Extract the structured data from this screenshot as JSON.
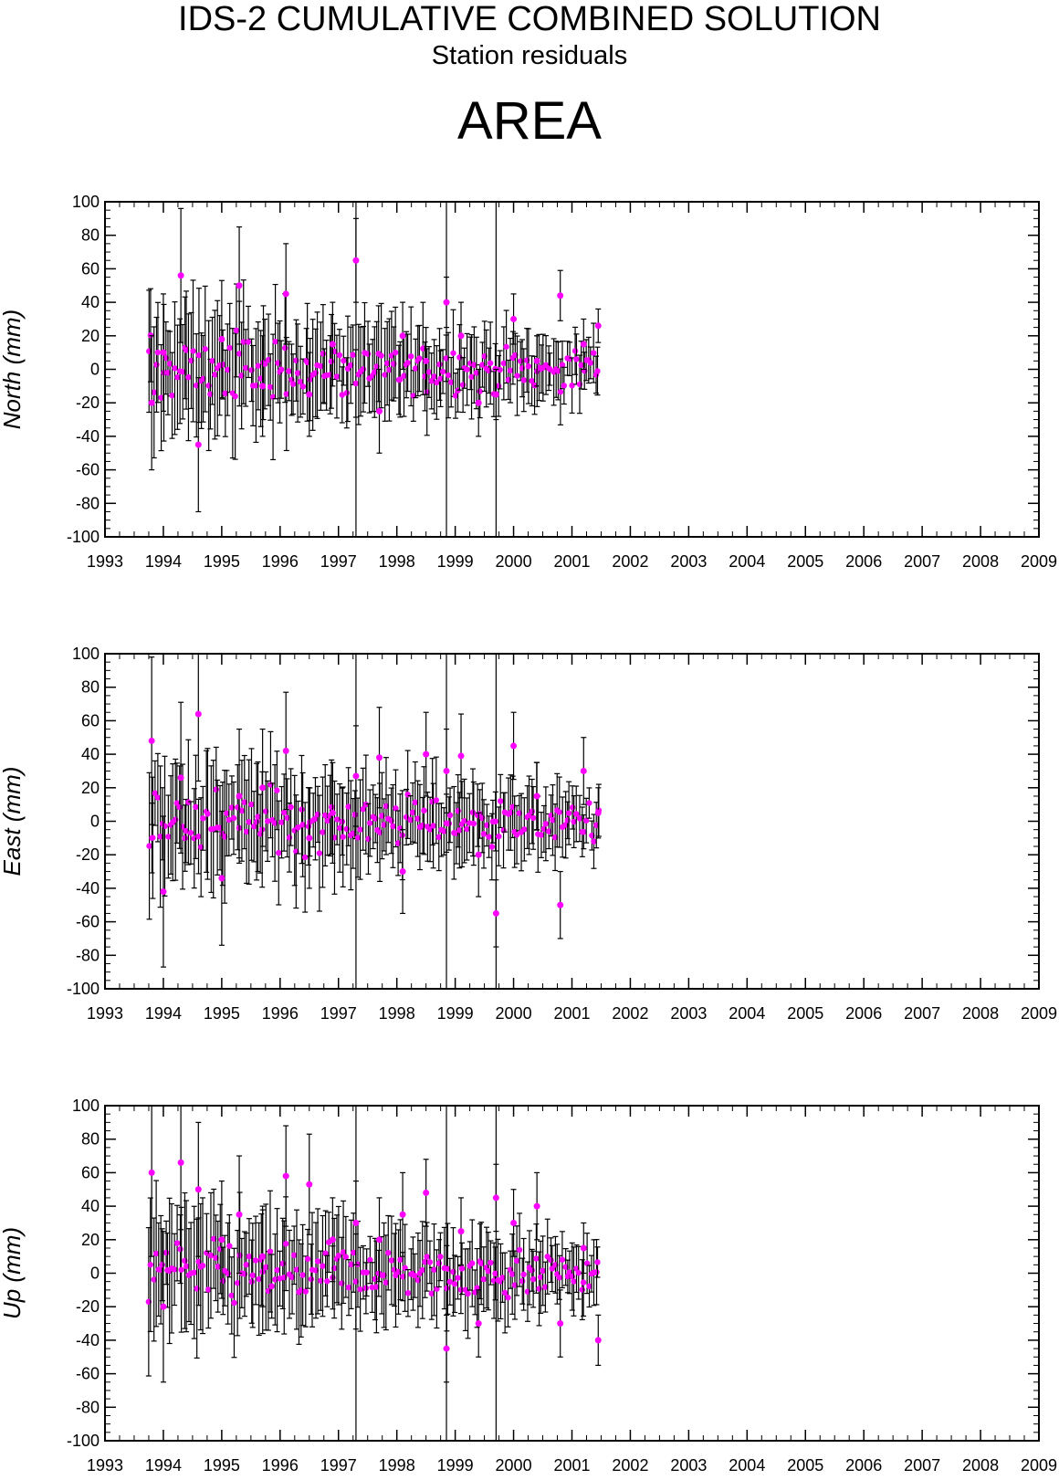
{
  "header": {
    "title": "IDS-2 CUMULATIVE COMBINED SOLUTION",
    "subtitle": "Station residuals",
    "station": "AREA"
  },
  "colors": {
    "point": "#ff00ff",
    "errorbar": "#000000",
    "axis": "#000000"
  },
  "chart_data": [
    {
      "type": "scatter",
      "panel": "north",
      "ylabel": "North (mm)",
      "xlim": [
        1993,
        2009
      ],
      "ylim": [
        -100,
        100
      ],
      "xticks": [
        1993,
        1994,
        1995,
        1996,
        1997,
        1998,
        1999,
        2000,
        2001,
        2002,
        2003,
        2004,
        2005,
        2006,
        2007,
        2008,
        2009
      ],
      "yticks": [
        -100,
        -80,
        -60,
        -40,
        -20,
        0,
        20,
        40,
        60,
        80,
        100
      ],
      "vertical_lines": [
        1997.3,
        1998.85,
        1999.7
      ],
      "error_bars": true,
      "data_range": [
        1993.75,
        2001.45
      ],
      "series": [
        {
          "x": [
            1993.8,
            1994.0,
            1994.3,
            1994.6,
            1995.0,
            1995.3,
            1995.7,
            1996.1,
            1996.5,
            1996.9,
            1997.3,
            1997.7,
            1998.1,
            1998.5,
            1998.85,
            1999.1,
            1999.4,
            1999.7,
            2000.0,
            2000.4,
            2000.8,
            2001.2,
            2001.45
          ],
          "y": [
            -20,
            10,
            56,
            -45,
            18,
            50,
            -10,
            45,
            -15,
            15,
            65,
            -25,
            20,
            5,
            40,
            20,
            -20,
            -15,
            30,
            5,
            44,
            15,
            26
          ],
          "err": [
            40,
            35,
            40,
            40,
            35,
            35,
            30,
            30,
            25,
            25,
            25,
            25,
            20,
            20,
            15,
            20,
            20,
            15,
            15,
            15,
            15,
            15,
            10
          ]
        }
      ]
    },
    {
      "type": "scatter",
      "panel": "east",
      "ylabel": "East (mm)",
      "xlim": [
        1993,
        2009
      ],
      "ylim": [
        -100,
        100
      ],
      "xticks": [
        1993,
        1994,
        1995,
        1996,
        1997,
        1998,
        1999,
        2000,
        2001,
        2002,
        2003,
        2004,
        2005,
        2006,
        2007,
        2008,
        2009
      ],
      "yticks": [
        -100,
        -80,
        -60,
        -40,
        -20,
        0,
        20,
        40,
        60,
        80,
        100
      ],
      "vertical_lines": [
        1997.3,
        1998.85,
        1999.7
      ],
      "error_bars": true,
      "data_range": [
        1993.75,
        2001.45
      ],
      "series": [
        {
          "x": [
            1993.8,
            1994.0,
            1994.3,
            1994.6,
            1995.0,
            1995.3,
            1995.7,
            1996.1,
            1996.5,
            1996.9,
            1997.3,
            1997.7,
            1998.1,
            1998.5,
            1998.85,
            1999.1,
            1999.4,
            1999.7,
            2000.0,
            2000.4,
            2000.8,
            2001.2,
            2001.45
          ],
          "y": [
            48,
            -42,
            26,
            64,
            -34,
            15,
            20,
            42,
            -10,
            5,
            27,
            38,
            -30,
            40,
            30,
            39,
            -20,
            -55,
            45,
            15,
            -50,
            30,
            5
          ],
          "err": [
            50,
            45,
            45,
            40,
            40,
            40,
            35,
            35,
            30,
            30,
            30,
            30,
            25,
            25,
            25,
            25,
            25,
            20,
            20,
            20,
            20,
            20,
            15
          ]
        }
      ]
    },
    {
      "type": "scatter",
      "panel": "up",
      "ylabel": "Up (mm)",
      "xlim": [
        1993,
        2009
      ],
      "ylim": [
        -100,
        100
      ],
      "xticks": [
        1993,
        1994,
        1995,
        1996,
        1997,
        1998,
        1999,
        2000,
        2001,
        2002,
        2003,
        2004,
        2005,
        2006,
        2007,
        2008,
        2009
      ],
      "yticks": [
        -100,
        -80,
        -60,
        -40,
        -20,
        0,
        20,
        40,
        60,
        80,
        100
      ],
      "vertical_lines": [
        1997.3,
        1998.85,
        1999.7
      ],
      "error_bars": true,
      "data_range": [
        1993.75,
        2001.45
      ],
      "series": [
        {
          "x": [
            1993.8,
            1994.0,
            1994.3,
            1994.6,
            1995.0,
            1995.3,
            1995.7,
            1996.1,
            1996.5,
            1996.9,
            1997.3,
            1997.7,
            1998.1,
            1998.5,
            1998.85,
            1999.1,
            1999.4,
            1999.7,
            2000.0,
            2000.4,
            2000.8,
            2001.2,
            2001.45
          ],
          "y": [
            60,
            -20,
            66,
            50,
            20,
            35,
            10,
            58,
            53,
            20,
            30,
            20,
            35,
            48,
            -45,
            25,
            -30,
            45,
            30,
            40,
            -30,
            15,
            -40
          ],
          "err": [
            50,
            45,
            40,
            40,
            35,
            35,
            30,
            30,
            30,
            25,
            25,
            25,
            25,
            20,
            20,
            20,
            20,
            20,
            20,
            20,
            20,
            15,
            15
          ]
        }
      ]
    }
  ]
}
